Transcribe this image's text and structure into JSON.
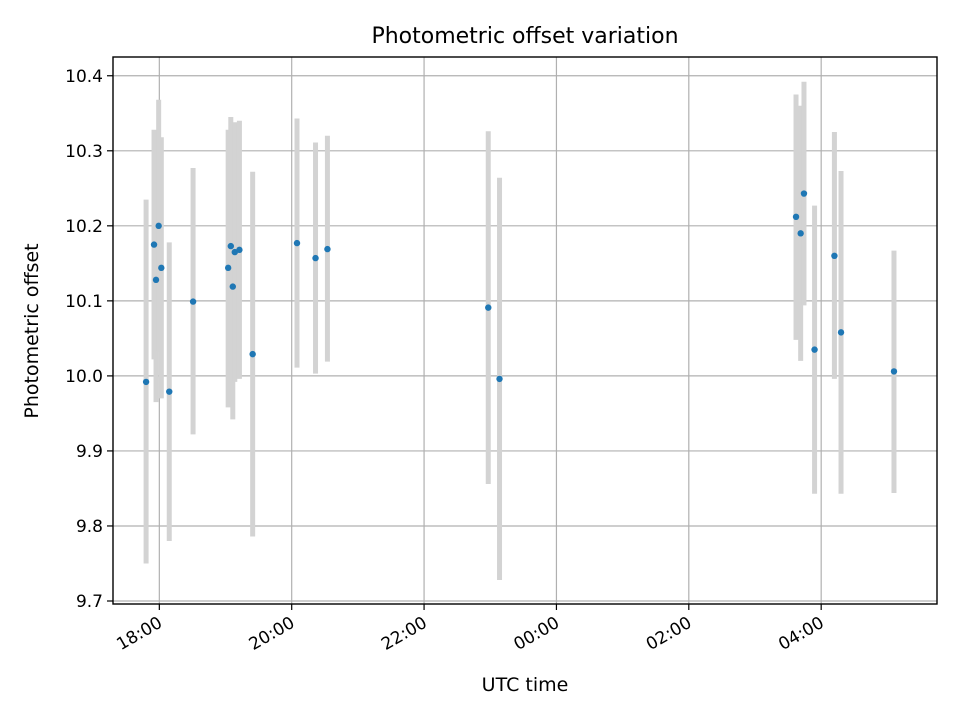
{
  "chart_data": {
    "type": "scatter",
    "title": "Photometric offset variation",
    "xlabel": "UTC time",
    "ylabel": "Photometric offset",
    "x_unit": "hours (UTC, continuing past midnight)",
    "xlim": [
      17.3,
      29.75
    ],
    "ylim": [
      9.696,
      10.425
    ],
    "grid": true,
    "x_ticks": [
      {
        "value": 18,
        "label": "18:00"
      },
      {
        "value": 20,
        "label": "20:00"
      },
      {
        "value": 22,
        "label": "22:00"
      },
      {
        "value": 24,
        "label": "00:00"
      },
      {
        "value": 26,
        "label": "02:00"
      },
      {
        "value": 28,
        "label": "04:00"
      }
    ],
    "y_ticks": [
      {
        "value": 9.7,
        "label": "9.7"
      },
      {
        "value": 9.8,
        "label": "9.8"
      },
      {
        "value": 9.9,
        "label": "9.9"
      },
      {
        "value": 10.0,
        "label": "10.0"
      },
      {
        "value": 10.1,
        "label": "10.1"
      },
      {
        "value": 10.2,
        "label": "10.2"
      },
      {
        "value": 10.3,
        "label": "10.3"
      },
      {
        "value": 10.4,
        "label": "10.4"
      }
    ],
    "colors": {
      "point": "#1f77b4",
      "errorbar": "#d3d3d3",
      "grid": "#b0b0b0"
    },
    "points": [
      {
        "time": "17:48",
        "x": 17.8,
        "y": 9.992,
        "ylow": 9.75,
        "yhigh": 10.235
      },
      {
        "time": "17:55",
        "x": 17.92,
        "y": 10.175,
        "ylow": 10.022,
        "yhigh": 10.328
      },
      {
        "time": "17:57",
        "x": 17.95,
        "y": 10.128,
        "ylow": 9.965,
        "yhigh": 10.29
      },
      {
        "time": "17:59",
        "x": 17.99,
        "y": 10.2,
        "ylow": 10.032,
        "yhigh": 10.368
      },
      {
        "time": "18:02",
        "x": 18.03,
        "y": 10.144,
        "ylow": 9.97,
        "yhigh": 10.318
      },
      {
        "time": "18:09",
        "x": 18.15,
        "y": 9.979,
        "ylow": 9.78,
        "yhigh": 10.178
      },
      {
        "time": "18:30",
        "x": 18.51,
        "y": 10.099,
        "ylow": 9.922,
        "yhigh": 10.277
      },
      {
        "time": "19:02",
        "x": 19.04,
        "y": 10.144,
        "ylow": 9.958,
        "yhigh": 10.328
      },
      {
        "time": "19:05",
        "x": 19.08,
        "y": 10.173,
        "ylow": 10.0,
        "yhigh": 10.345
      },
      {
        "time": "19:07",
        "x": 19.11,
        "y": 10.119,
        "ylow": 9.942,
        "yhigh": 10.296
      },
      {
        "time": "19:09",
        "x": 19.14,
        "y": 10.165,
        "ylow": 9.992,
        "yhigh": 10.338
      },
      {
        "time": "19:13",
        "x": 19.21,
        "y": 10.168,
        "ylow": 9.996,
        "yhigh": 10.34
      },
      {
        "time": "19:25",
        "x": 19.41,
        "y": 10.029,
        "ylow": 9.786,
        "yhigh": 10.272
      },
      {
        "time": "20:05",
        "x": 20.08,
        "y": 10.177,
        "ylow": 10.011,
        "yhigh": 10.343
      },
      {
        "time": "20:22",
        "x": 20.36,
        "y": 10.157,
        "ylow": 10.003,
        "yhigh": 10.311
      },
      {
        "time": "20:33",
        "x": 20.54,
        "y": 10.169,
        "ylow": 10.019,
        "yhigh": 10.32
      },
      {
        "time": "22:58",
        "x": 22.97,
        "y": 10.091,
        "ylow": 9.856,
        "yhigh": 10.326
      },
      {
        "time": "23:08",
        "x": 23.14,
        "y": 9.996,
        "ylow": 9.728,
        "yhigh": 10.264
      },
      {
        "time": "03:37",
        "x": 27.62,
        "y": 10.212,
        "ylow": 10.048,
        "yhigh": 10.375
      },
      {
        "time": "03:41",
        "x": 27.69,
        "y": 10.19,
        "ylow": 10.02,
        "yhigh": 10.36
      },
      {
        "time": "03:44",
        "x": 27.74,
        "y": 10.243,
        "ylow": 10.094,
        "yhigh": 10.392
      },
      {
        "time": "03:54",
        "x": 27.9,
        "y": 10.035,
        "ylow": 9.843,
        "yhigh": 10.227
      },
      {
        "time": "04:12",
        "x": 28.2,
        "y": 10.16,
        "ylow": 9.996,
        "yhigh": 10.325
      },
      {
        "time": "04:18",
        "x": 28.3,
        "y": 10.058,
        "ylow": 9.843,
        "yhigh": 10.273
      },
      {
        "time": "05:06",
        "x": 29.1,
        "y": 10.006,
        "ylow": 9.844,
        "yhigh": 10.167
      }
    ]
  }
}
